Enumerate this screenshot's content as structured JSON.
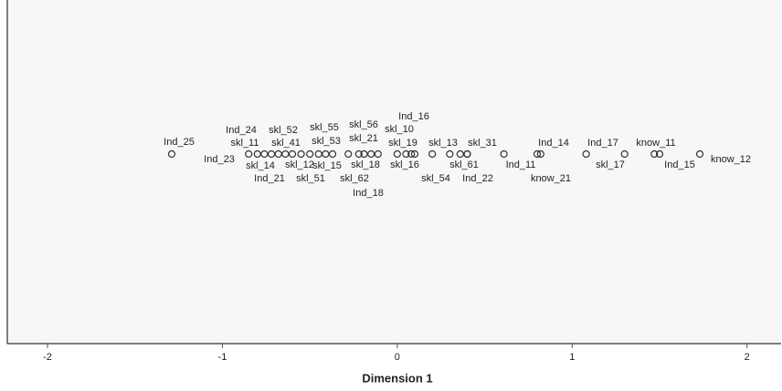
{
  "chart_data": {
    "type": "scatter",
    "x_label": "Dimension 1",
    "labels": [
      "Ind_25",
      "Ind_23",
      "Ind_24",
      "skl_11",
      "skl_14",
      "Ind_21",
      "skl_52",
      "skl_41",
      "skl_12",
      "skl_51",
      "skl_55",
      "skl_53",
      "skl_15",
      "skl_62",
      "skl_56",
      "skl_21",
      "skl_18",
      "Ind_18",
      "skl_10",
      "Ind_16",
      "skl_19",
      "skl_16",
      "skl_13",
      "skl_31",
      "skl_61",
      "skl_54",
      "Ind_22",
      "Ind_11",
      "Ind_14",
      "know_21",
      "Ind_17",
      "skl_17",
      "know_11",
      "Ind_15",
      "know_12"
    ],
    "x": [
      -1.29,
      -0.85,
      -0.8,
      -0.76,
      -0.72,
      -0.68,
      -0.64,
      -0.6,
      -0.55,
      -0.5,
      -0.45,
      -0.41,
      -0.37,
      -0.28,
      -0.22,
      -0.19,
      -0.15,
      -0.11,
      0.0,
      0.05,
      0.08,
      0.1,
      0.2,
      0.4,
      0.36,
      0.3,
      0.4,
      0.61,
      0.82,
      0.8,
      1.08,
      1.3,
      1.47,
      1.5,
      1.73
    ],
    "xlim": [
      -2.23,
      2.2
    ],
    "xticks": [
      -2,
      -1,
      0,
      1,
      2
    ],
    "color": "#333333"
  }
}
